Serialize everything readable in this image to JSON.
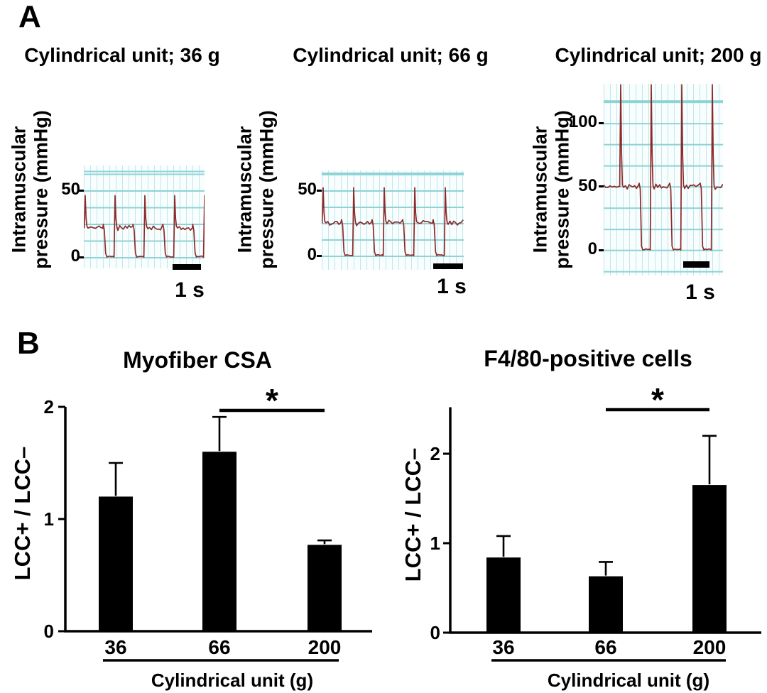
{
  "panel_labels": {
    "a": "A",
    "b": "B"
  },
  "colors": {
    "background": "#ffffff",
    "text": "#000000",
    "bar_fill": "#000000",
    "axis": "#000000",
    "trace_stroke": "#8e2a2b",
    "grid_paper_bg": "#f8fdfd",
    "grid_minor_line": "#c2e7ea",
    "grid_major_line": "#8ed4d6"
  },
  "chart_data": [
    {
      "id": "trace_36g",
      "type": "line",
      "title": "Cylindrical unit; 36 g",
      "ylabel": "Intramuscular pressure (mmHg)",
      "ylabel_line1": "Intramuscular",
      "ylabel_line2": "pressure (mmHg)",
      "y_unit": "mmHg",
      "yticks": [
        50,
        0
      ],
      "scale_bar_label": "1 s",
      "scale_bar_seconds": 1,
      "waveform": {
        "baseline_mmHg": 22,
        "spike_peak_mmHg": 46,
        "trough_mmHg": 0,
        "cycles": 4,
        "period_s": 1.1,
        "description": "rhythmic cycles: noisy plateau at ~22 mmHg, drop to 0 mmHg, sharp spike to ~46 mmHg on recovery"
      }
    },
    {
      "id": "trace_66g",
      "type": "line",
      "title": "Cylindrical unit; 66 g",
      "ylabel": "Intramuscular pressure (mmHg)",
      "ylabel_line1": "Intramuscular",
      "ylabel_line2": "pressure (mmHg)",
      "y_unit": "mmHg",
      "yticks": [
        50,
        0
      ],
      "scale_bar_label": "1 s",
      "scale_bar_seconds": 1,
      "waveform": {
        "baseline_mmHg": 25,
        "spike_peak_mmHg": 52,
        "trough_mmHg": 0,
        "cycles": 5,
        "period_s": 1.0,
        "description": "rhythmic cycles: noisy plateau at ~25 mmHg, drop to 0 mmHg, sharp spike to ~52 mmHg on recovery"
      }
    },
    {
      "id": "trace_200g",
      "type": "line",
      "title": "Cylindrical unit; 200 g",
      "ylabel": "Intramuscular pressure (mmHg)",
      "ylabel_line1": "Intramuscular",
      "ylabel_line2": "pressure (mmHg)",
      "y_unit": "mmHg",
      "yticks": [
        100,
        50,
        0
      ],
      "scale_bar_label": "1 s",
      "scale_bar_seconds": 1,
      "waveform": {
        "baseline_mmHg": 50,
        "spike_peak_mmHg": 135,
        "trough_mmHg": 0,
        "cycles": 4,
        "period_s": 1.2,
        "clipped_at_top": true,
        "description": "rhythmic cycles: noisy plateau at ~50 mmHg, drop to 0 mmHg, tall spike beyond 125 mmHg (clipped at plot top)"
      }
    },
    {
      "id": "myofiber_csa",
      "type": "bar",
      "title": "Myofiber CSA",
      "ylabel": "LCC+ / LCC–",
      "xlabel": "Cylindrical unit (g)",
      "categories": [
        "36",
        "66",
        "200"
      ],
      "values": [
        1.2,
        1.6,
        0.77
      ],
      "errors_up": [
        0.3,
        0.31,
        0.04
      ],
      "yticks": [
        0,
        1,
        2
      ],
      "ylim": [
        0,
        2.0
      ],
      "significance": {
        "between": [
          "66",
          "200"
        ],
        "pair_indices": [
          1,
          2
        ],
        "label": "*"
      }
    },
    {
      "id": "f480_positive_cells",
      "type": "bar",
      "title": "F4/80-positive cells",
      "ylabel": "LCC+ / LCC–",
      "xlabel": "Cylindrical unit (g)",
      "categories": [
        "36",
        "66",
        "200"
      ],
      "values": [
        0.84,
        0.63,
        1.65
      ],
      "errors_up": [
        0.24,
        0.16,
        0.55
      ],
      "yticks": [
        0,
        1,
        2
      ],
      "ylim": [
        0,
        2.52
      ],
      "significance": {
        "between": [
          "66",
          "200"
        ],
        "pair_indices": [
          1,
          2
        ],
        "label": "*"
      }
    }
  ]
}
